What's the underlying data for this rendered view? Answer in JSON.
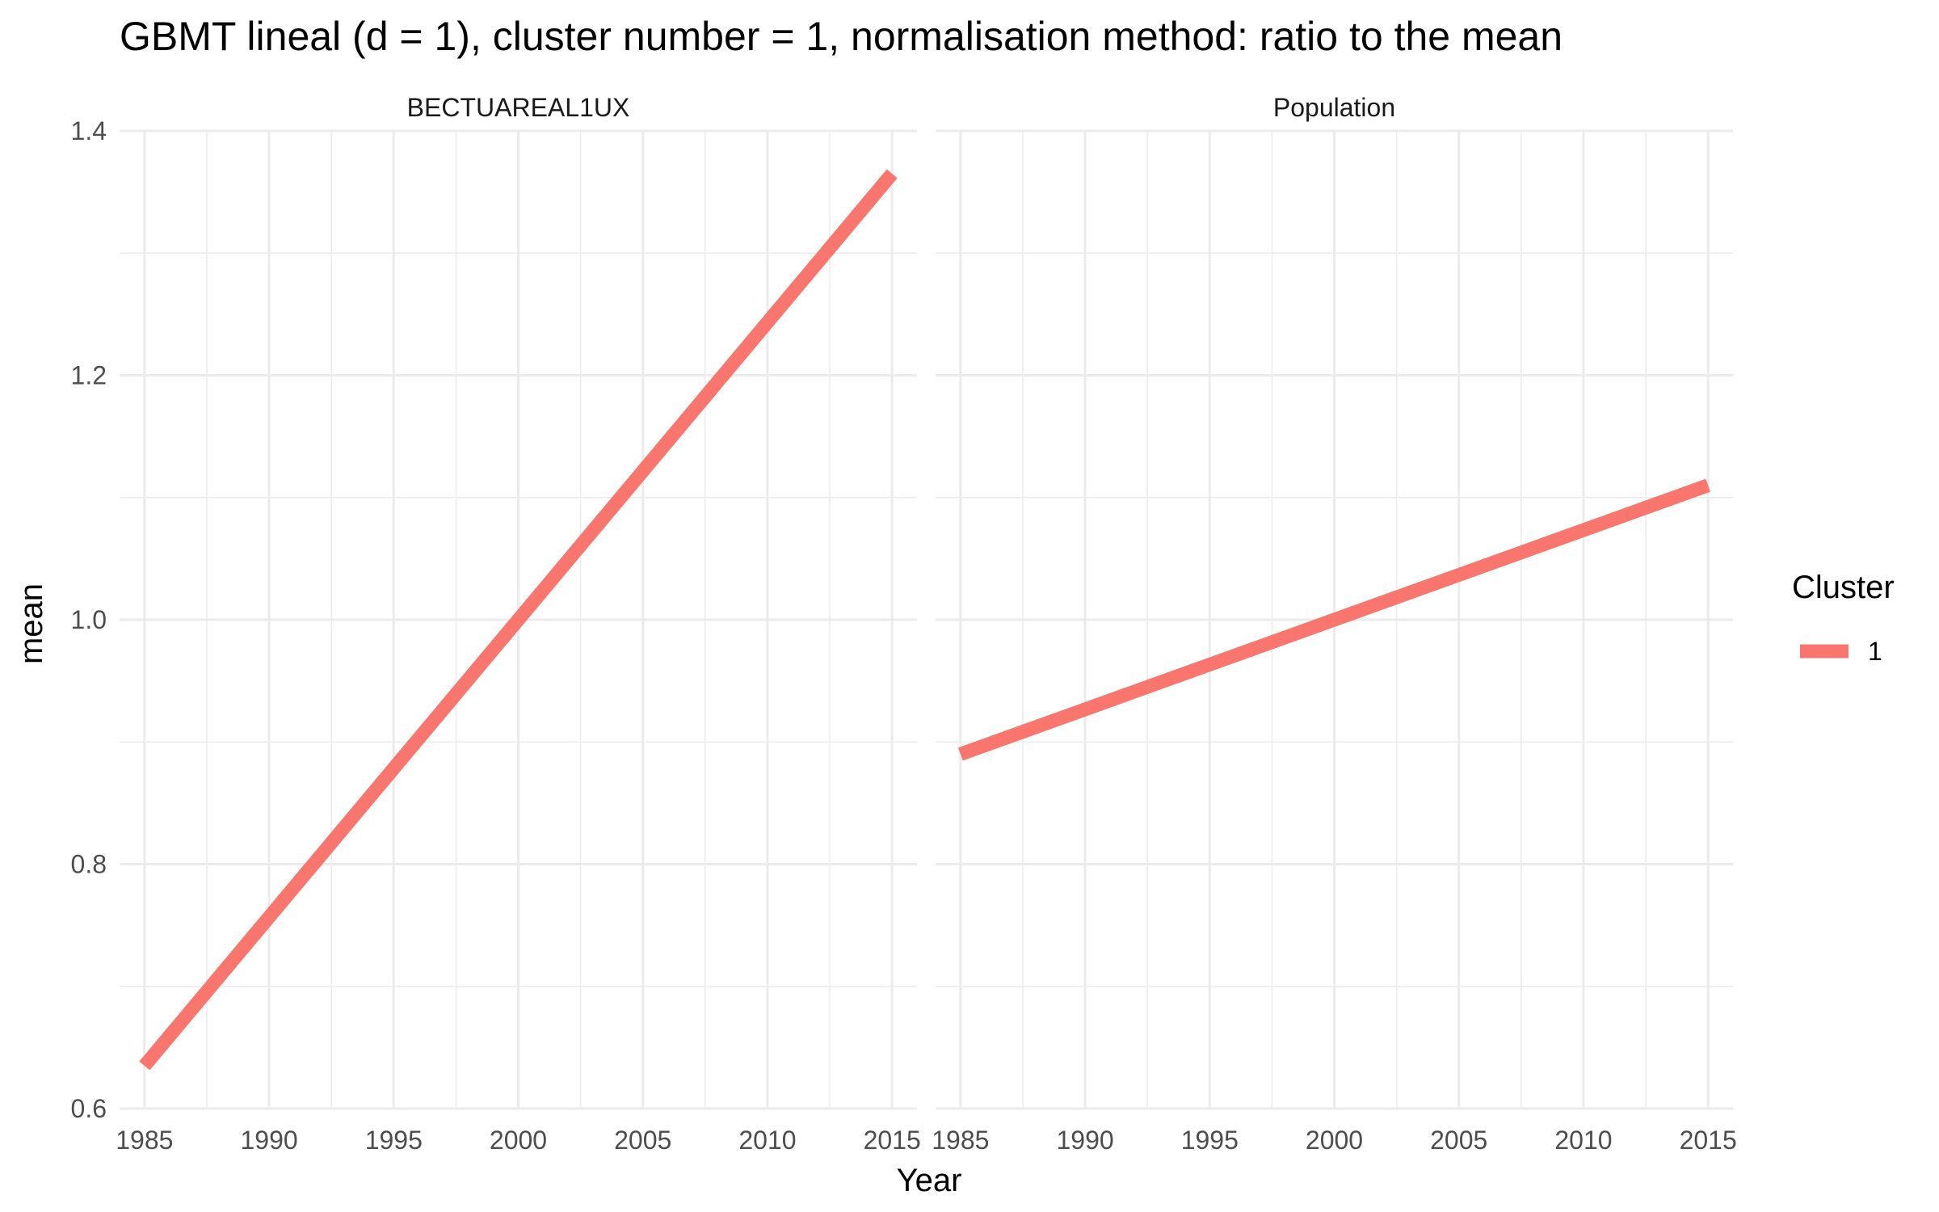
{
  "chart_data": {
    "type": "line",
    "title": "GBMT lineal (d = 1), cluster number = 1, normalisation method: ratio to the mean",
    "xlabel": "Year",
    "ylabel": "mean",
    "xlim": [
      1984,
      2016
    ],
    "ylim": [
      0.6,
      1.4
    ],
    "x_ticks": [
      1985,
      1990,
      1995,
      2000,
      2005,
      2010,
      2015
    ],
    "y_ticks": [
      0.6,
      0.8,
      1.0,
      1.2,
      1.4
    ],
    "y_tick_labels": [
      "0.6",
      "0.8",
      "1.0",
      "1.2",
      "1.4"
    ],
    "grid": true,
    "legend": {
      "title": "Cluster",
      "placement": "right",
      "entries": [
        "1"
      ]
    },
    "line_color": "#F8766D",
    "panels": [
      {
        "name": "BECTUAREAL1UX",
        "series": [
          {
            "name": "1",
            "x": [
              1985,
              2015
            ],
            "y": [
              0.635,
              1.365
            ]
          }
        ]
      },
      {
        "name": "Population",
        "series": [
          {
            "name": "1",
            "x": [
              1985,
              2015
            ],
            "y": [
              0.89,
              1.11
            ]
          }
        ]
      }
    ]
  }
}
